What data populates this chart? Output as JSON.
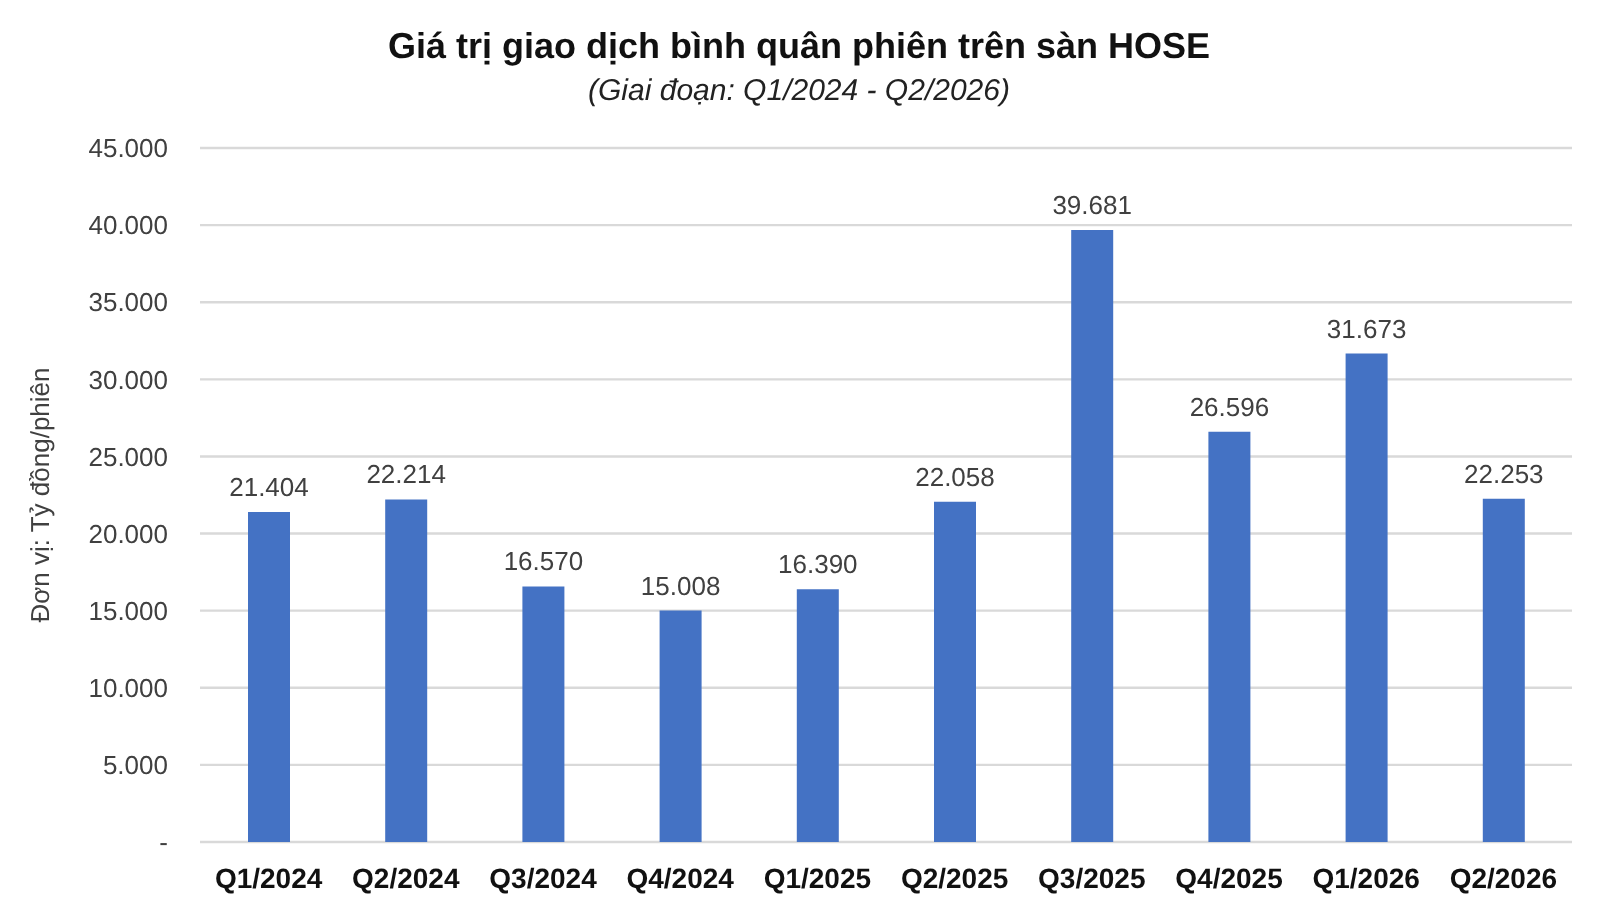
{
  "chart_data": {
    "type": "bar",
    "title": "Giá trị giao dịch bình quân phiên trên sàn HOSE",
    "subtitle": "(Giai đoạn: Q1/2024 - Q2/2026)",
    "ylabel": "Đơn vị: Tỷ đồng/phiên",
    "categories": [
      "Q1/2024",
      "Q2/2024",
      "Q3/2024",
      "Q4/2024",
      "Q1/2025",
      "Q2/2025",
      "Q3/2025",
      "Q4/2025",
      "Q1/2026",
      "Q2/2026"
    ],
    "values": [
      21404,
      22214,
      16570,
      15008,
      16390,
      22058,
      39681,
      26596,
      31673,
      22253
    ],
    "value_labels": [
      "21.404",
      "22.214",
      "16.570",
      "15.008",
      "16.390",
      "22.058",
      "39.681",
      "26.596",
      "31.673",
      "22.253"
    ],
    "color": "#4472c4",
    "ylim": [
      0,
      45000
    ],
    "yticks": [
      {
        "value": 0,
        "label": "-"
      },
      {
        "value": 5000,
        "label": "5.000"
      },
      {
        "value": 10000,
        "label": "10.000"
      },
      {
        "value": 15000,
        "label": "15.000"
      },
      {
        "value": 20000,
        "label": "20.000"
      },
      {
        "value": 25000,
        "label": "25.000"
      },
      {
        "value": 30000,
        "label": "30.000"
      },
      {
        "value": 35000,
        "label": "35.000"
      },
      {
        "value": 40000,
        "label": "40.000"
      },
      {
        "value": 45000,
        "label": "45.000"
      }
    ],
    "grid": "y"
  }
}
